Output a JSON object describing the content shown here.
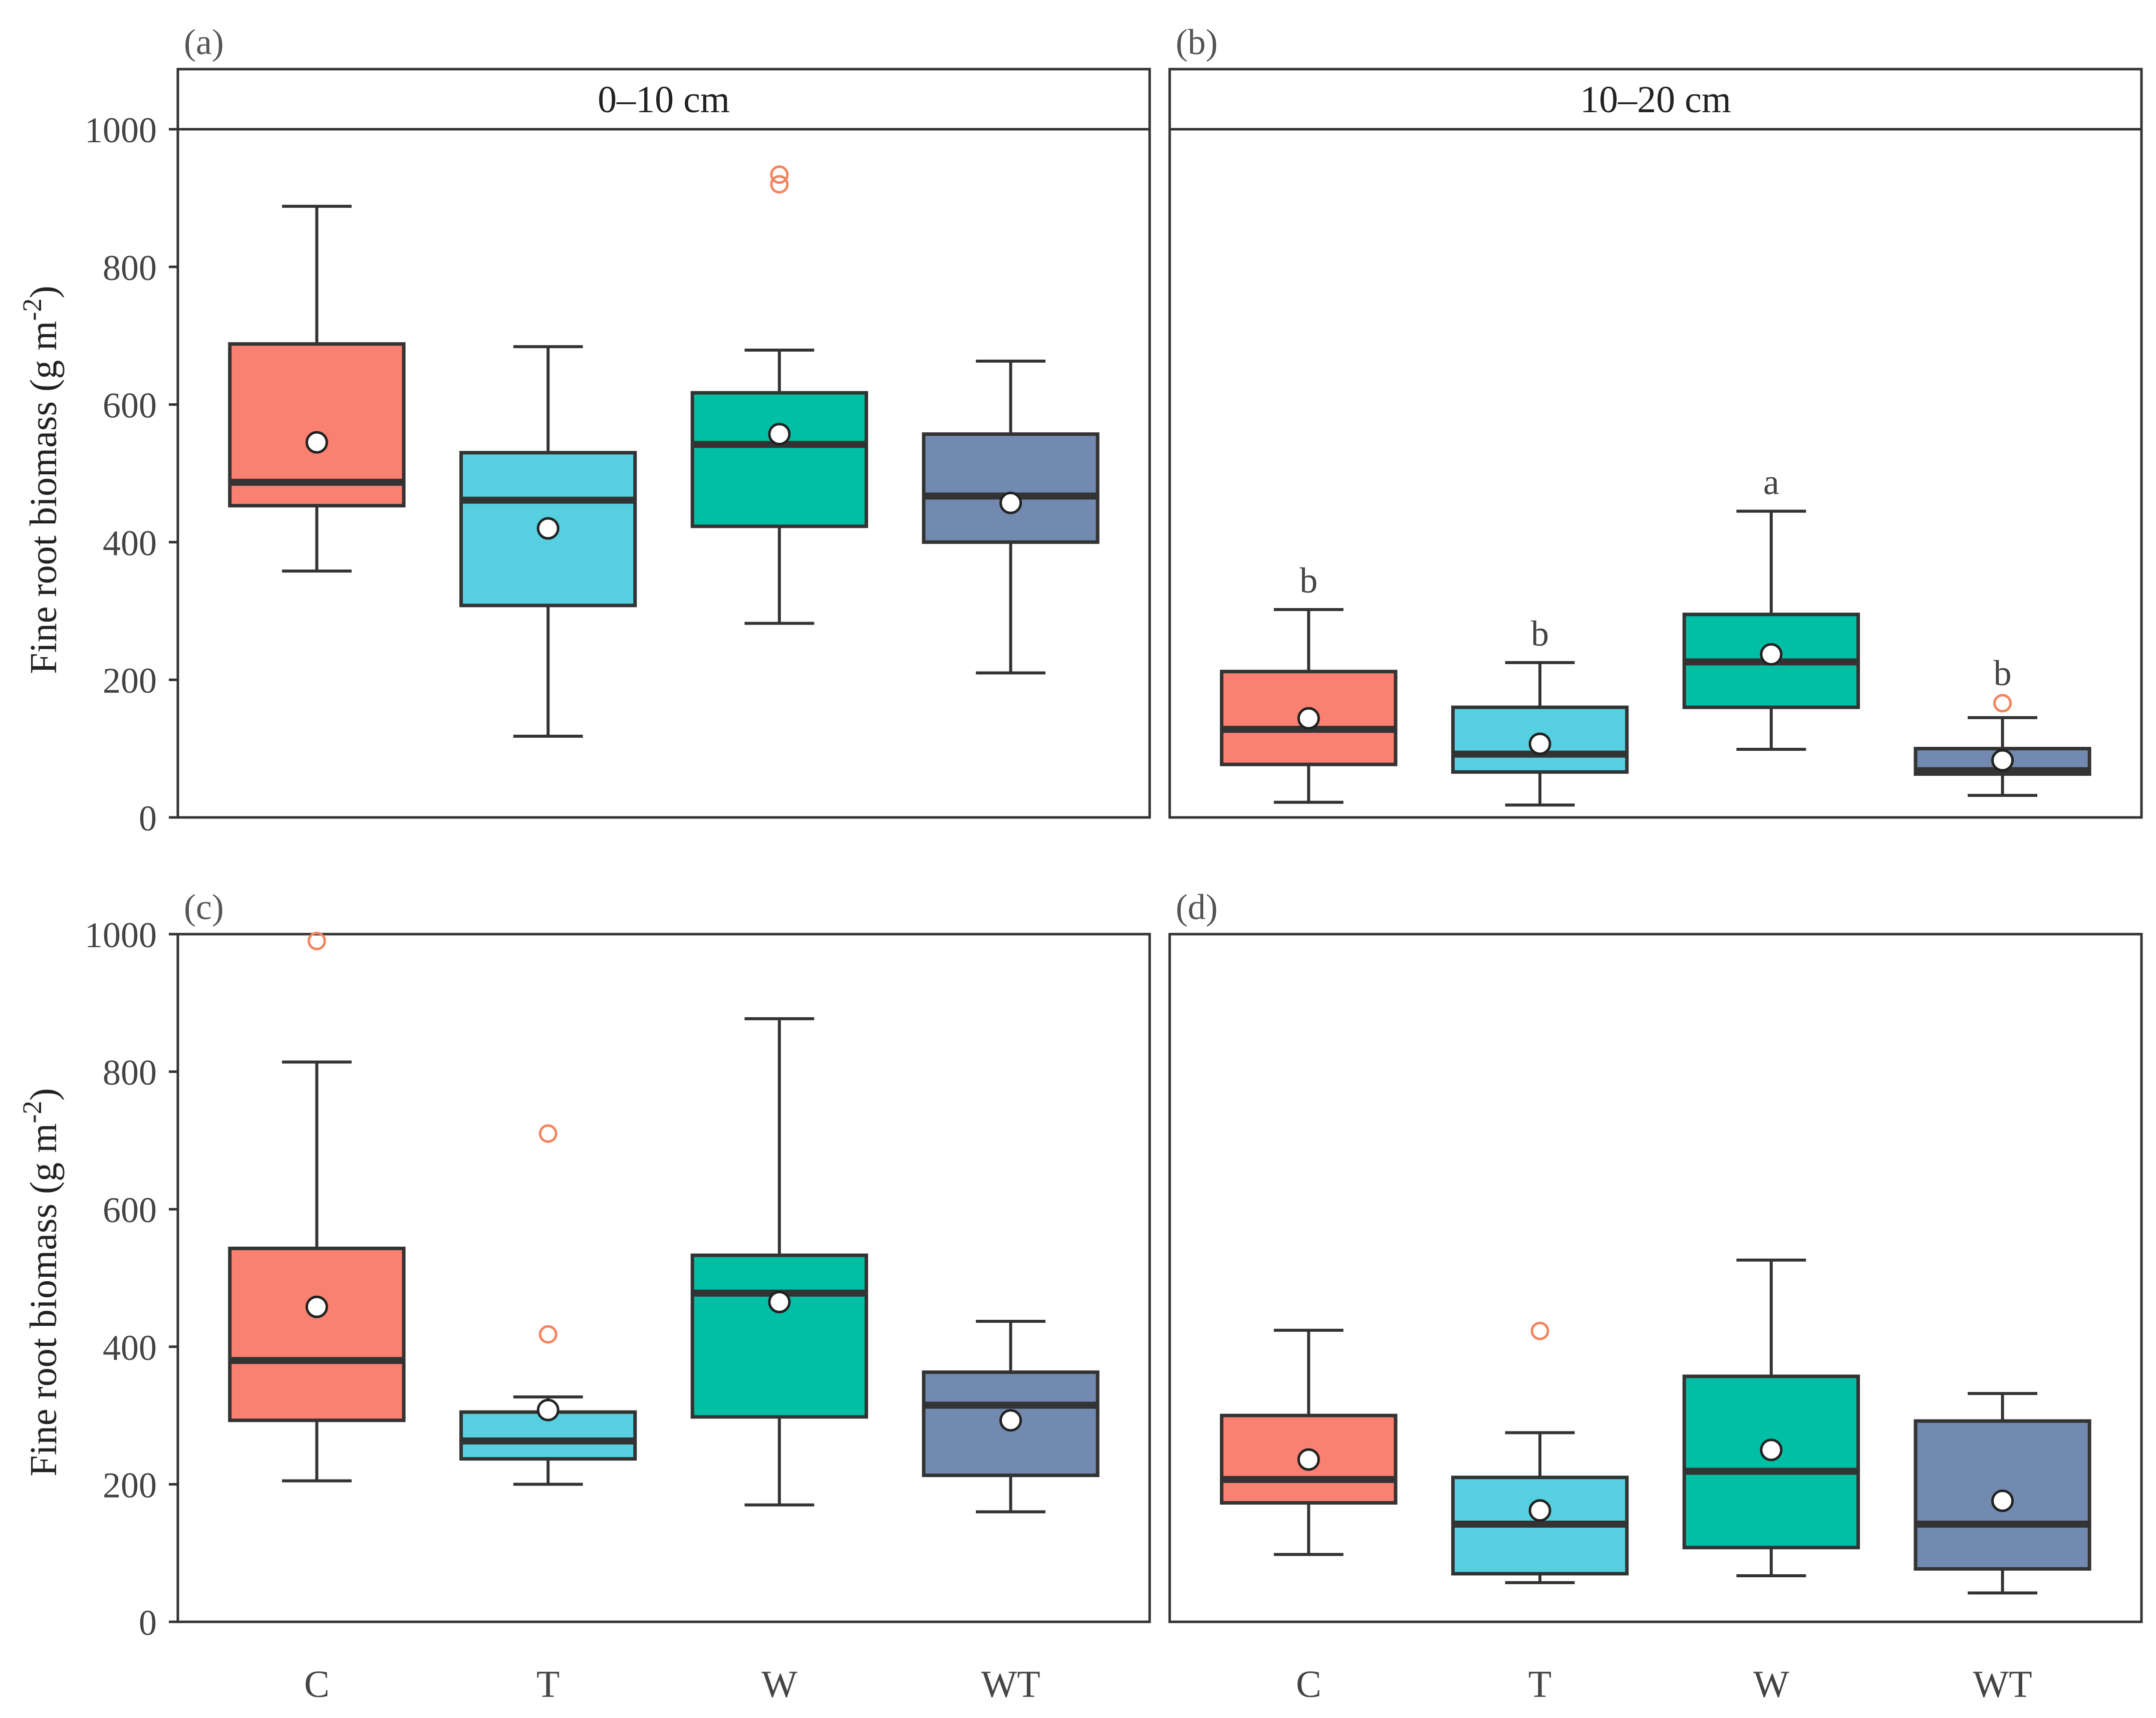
{
  "chart_data": {
    "type": "box",
    "categories": [
      "C",
      "T",
      "W",
      "WT"
    ],
    "colors": {
      "C": "#FA8072",
      "T": "#56D0E0",
      "W": "#00BFA5",
      "WT": "#7289B0"
    },
    "outlier_color": "#F4845F",
    "y_axis_label_prefix": "Fine root biomass (g m",
    "y_axis_label_exp": "-2",
    "y_axis_label_suffix": ")",
    "ylim": [
      0,
      1000
    ],
    "yticks": [
      "0",
      "200",
      "400",
      "600",
      "800",
      "1000"
    ],
    "panels": [
      {
        "label": "(a)",
        "strip": "0–10 cm",
        "boxes": [
          {
            "cat": "C",
            "min": 358,
            "q1": 453,
            "median": 487,
            "q3": 688,
            "max": 888,
            "mean": 545,
            "outliers": []
          },
          {
            "cat": "T",
            "min": 118,
            "q1": 308,
            "median": 461,
            "q3": 530,
            "max": 684,
            "mean": 420,
            "outliers": []
          },
          {
            "cat": "W",
            "min": 282,
            "q1": 423,
            "median": 542,
            "q3": 617,
            "max": 679,
            "mean": 557,
            "outliers": [
              920,
              934
            ]
          },
          {
            "cat": "WT",
            "min": 210,
            "q1": 400,
            "median": 467,
            "q3": 557,
            "max": 663,
            "mean": 457,
            "outliers": []
          }
        ],
        "sig": []
      },
      {
        "label": "(b)",
        "strip": "10–20 cm",
        "boxes": [
          {
            "cat": "C",
            "min": 22,
            "q1": 77,
            "median": 128,
            "q3": 212,
            "max": 302,
            "mean": 144,
            "outliers": []
          },
          {
            "cat": "T",
            "min": 18,
            "q1": 66,
            "median": 92,
            "q3": 160,
            "max": 225,
            "mean": 107,
            "outliers": []
          },
          {
            "cat": "W",
            "min": 99,
            "q1": 160,
            "median": 226,
            "q3": 295,
            "max": 445,
            "mean": 237,
            "outliers": []
          },
          {
            "cat": "WT",
            "min": 32,
            "q1": 63,
            "median": 68,
            "q3": 100,
            "max": 145,
            "mean": 83,
            "outliers": [
              166
            ]
          }
        ],
        "sig": [
          "b",
          "b",
          "a",
          "b"
        ]
      },
      {
        "label": "(c)",
        "strip": "",
        "boxes": [
          {
            "cat": "C",
            "min": 205,
            "q1": 293,
            "median": 380,
            "q3": 543,
            "max": 814,
            "mean": 458,
            "outliers": [
              990
            ]
          },
          {
            "cat": "T",
            "min": 200,
            "q1": 237,
            "median": 263,
            "q3": 305,
            "max": 327,
            "mean": 308,
            "outliers": [
              418,
              710
            ]
          },
          {
            "cat": "W",
            "min": 170,
            "q1": 298,
            "median": 478,
            "q3": 533,
            "max": 877,
            "mean": 465,
            "outliers": []
          },
          {
            "cat": "WT",
            "min": 160,
            "q1": 213,
            "median": 315,
            "q3": 363,
            "max": 437,
            "mean": 293,
            "outliers": []
          }
        ],
        "sig": []
      },
      {
        "label": "(d)",
        "strip": "",
        "boxes": [
          {
            "cat": "C",
            "min": 98,
            "q1": 173,
            "median": 207,
            "q3": 300,
            "max": 424,
            "mean": 236,
            "outliers": []
          },
          {
            "cat": "T",
            "min": 57,
            "q1": 70,
            "median": 142,
            "q3": 210,
            "max": 275,
            "mean": 162,
            "outliers": [
              423
            ]
          },
          {
            "cat": "W",
            "min": 67,
            "q1": 108,
            "median": 219,
            "q3": 357,
            "max": 526,
            "mean": 250,
            "outliers": []
          },
          {
            "cat": "WT",
            "min": 42,
            "q1": 77,
            "median": 142,
            "q3": 292,
            "max": 332,
            "mean": 176,
            "outliers": []
          }
        ],
        "sig": []
      }
    ]
  }
}
